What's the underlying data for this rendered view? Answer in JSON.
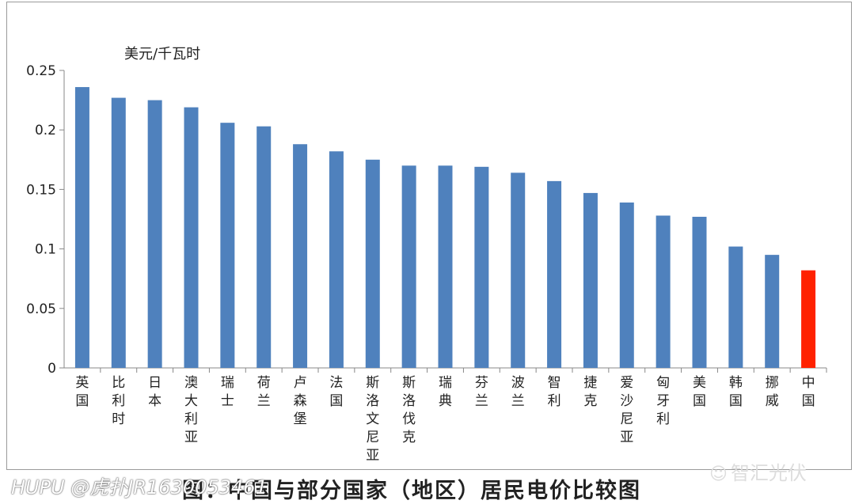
{
  "chart_data": {
    "type": "bar",
    "ylabel": "美元/千瓦时",
    "ylim": [
      0,
      0.25
    ],
    "yticks": [
      "0",
      "0.05",
      "0.1",
      "0.15",
      "0.2",
      "0.25"
    ],
    "grid": false,
    "categories": [
      "英国",
      "比利时",
      "日本",
      "澳大利亚",
      "瑞士",
      "荷兰",
      "卢森堡",
      "法国",
      "斯洛文尼亚",
      "斯洛伐克",
      "瑞典",
      "芬兰",
      "波兰",
      "智利",
      "捷克",
      "爱沙尼亚",
      "匈牙利",
      "美国",
      "韩国",
      "挪威",
      "中国"
    ],
    "values": [
      0.236,
      0.227,
      0.225,
      0.219,
      0.206,
      0.203,
      0.188,
      0.182,
      0.175,
      0.17,
      0.17,
      0.169,
      0.164,
      0.157,
      0.147,
      0.139,
      0.128,
      0.127,
      0.102,
      0.095,
      0.082
    ],
    "colors": {
      "default": "#4f81bd",
      "highlight": "#ff2200",
      "highlight_category": "中国"
    }
  },
  "caption": "图：中国与部分国家（地区）居民电价比较图",
  "watermark_left": "HUPU @虎扑JR1630053461",
  "watermark_right": "智汇光伏",
  "watermark_right_icon": "wechat-icon"
}
